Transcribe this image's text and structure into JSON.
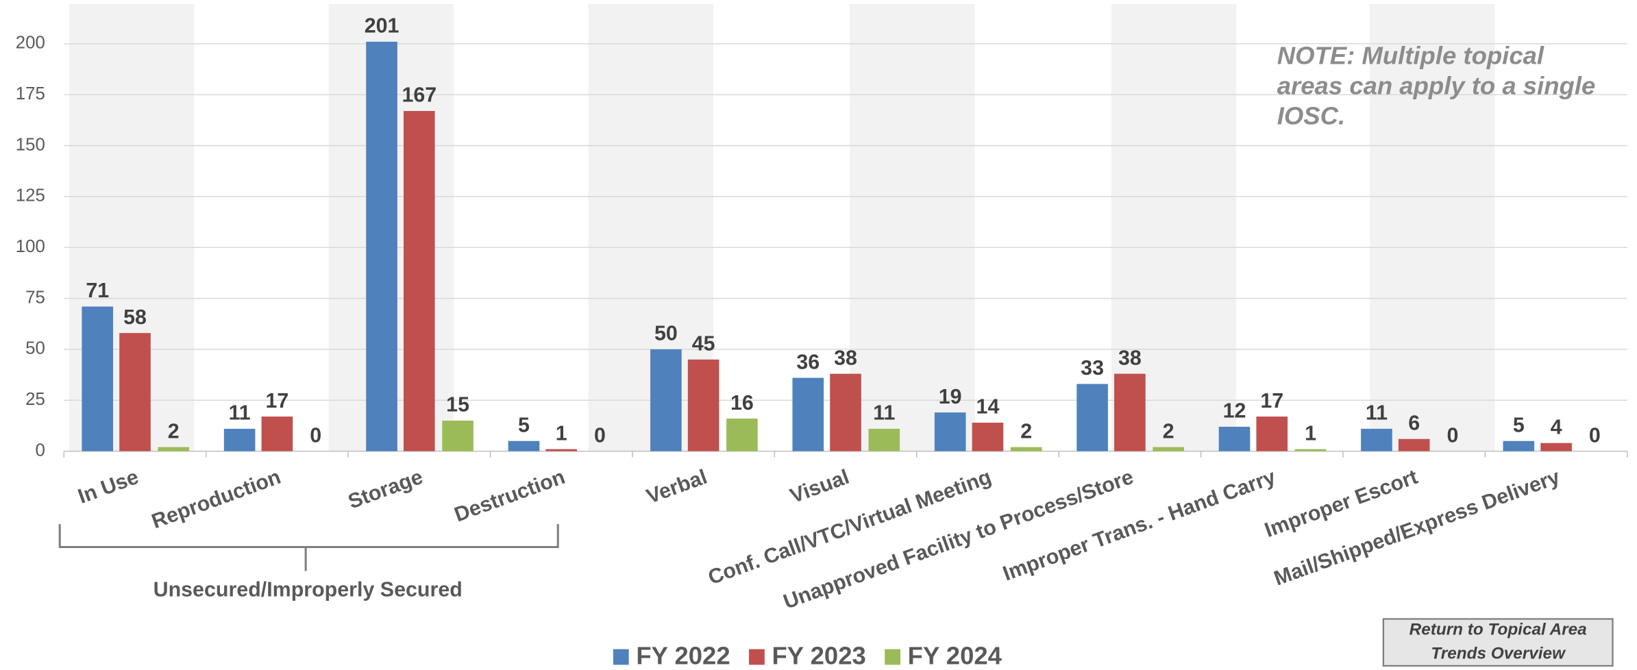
{
  "chart_data": {
    "type": "bar",
    "categories": [
      "In Use",
      "Reproduction",
      "Storage",
      "Destruction",
      "Verbal",
      "Visual",
      "Conf. Call/VTC/Virtual Meeting",
      "Unapproved Facility to Process/Store",
      "Improper Trans. - Hand Carry",
      "Improper Escort",
      "Mail/Shipped/Express Delivery"
    ],
    "series": [
      {
        "name": "FY 2022",
        "color": "#4f81bd",
        "values": [
          71,
          11,
          201,
          5,
          50,
          36,
          19,
          33,
          12,
          11,
          5
        ]
      },
      {
        "name": "FY 2023",
        "color": "#c0504d",
        "values": [
          58,
          17,
          167,
          1,
          45,
          38,
          14,
          38,
          17,
          6,
          4
        ]
      },
      {
        "name": "FY 2024",
        "color": "#9bbb59",
        "values": [
          2,
          0,
          15,
          0,
          16,
          11,
          2,
          2,
          1,
          0,
          0
        ]
      }
    ],
    "ylim": [
      0,
      200
    ],
    "yticks": [
      0,
      25,
      50,
      75,
      100,
      125,
      150,
      175,
      200
    ],
    "grid": true,
    "legend": "bottom",
    "group_label": "Unsecured/Improperly Secured",
    "note": [
      "NOTE:  Multiple topical",
      "areas can apply to a single",
      "IOSC."
    ]
  },
  "button": [
    "Return to Topical Area",
    "Trends Overview"
  ]
}
